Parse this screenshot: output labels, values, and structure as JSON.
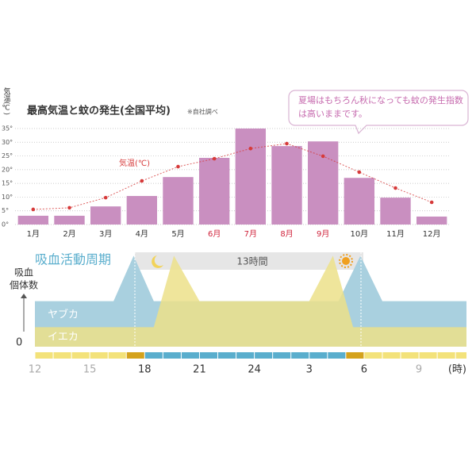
{
  "chart_data": [
    {
      "type": "bar-line",
      "title": "最高気温と蚊の発生(全国平均)",
      "note": "※自社調べ",
      "ylabel": "気温(℃)",
      "annotation": "夏場はもちろん秋になっても蚊の発生指数は高いままです。",
      "categories": [
        "1月",
        "2月",
        "3月",
        "4月",
        "5月",
        "6月",
        "7月",
        "8月",
        "9月",
        "10月",
        "11月",
        "12月"
      ],
      "category_colors": [
        "#333333",
        "#333333",
        "#333333",
        "#333333",
        "#333333",
        "#d0243c",
        "#d0243c",
        "#d0243c",
        "#d0243c",
        "#333333",
        "#333333",
        "#333333"
      ],
      "series": [
        {
          "type": "bar",
          "color": "#c98fc0",
          "values": [
            3.2,
            3.2,
            6.6,
            10.4,
            17.3,
            24.3,
            35,
            28.6,
            30.3,
            17,
            9.8,
            2.9
          ]
        },
        {
          "type": "line",
          "name": "気温(℃)",
          "color": "#d63a3a",
          "values": [
            5.5,
            6.1,
            9.8,
            15.9,
            21.1,
            24,
            27.7,
            29.5,
            24.9,
            19.1,
            13.3,
            8.1
          ]
        }
      ],
      "ylim": [
        0,
        35
      ],
      "yticks": [
        {
          "value": 0,
          "label": "0°"
        },
        {
          "value": 5,
          "label": "5°"
        },
        {
          "value": 10,
          "label": "10°"
        },
        {
          "value": 15,
          "label": "15°"
        },
        {
          "value": 20,
          "label": "20°"
        },
        {
          "value": 25,
          "label": "25°"
        },
        {
          "value": 30,
          "label": "30°"
        },
        {
          "value": 35,
          "label": "35°"
        }
      ],
      "grid": true
    },
    {
      "type": "area",
      "title": "吸血活動周期",
      "annotation": "13時間",
      "ylabel": [
        "吸血",
        "個体数"
      ],
      "x_unit": "(時)",
      "xlim": [
        12,
        35.6
      ],
      "xticks": [
        12,
        15,
        18,
        21,
        24,
        {
          "value": 27,
          "label": "3"
        },
        {
          "value": 30,
          "label": "6"
        },
        {
          "value": 33,
          "label": "9"
        }
      ],
      "ylim": [
        0,
        10
      ],
      "yticks": [
        0
      ],
      "series": [
        {
          "name": "ヤブカ",
          "color": "#a9d0df",
          "x": [
            12,
            16.3,
            17.4,
            18.5,
            28.6,
            29.8,
            31,
            35.6
          ],
          "values": [
            4.9,
            4.9,
            9.8,
            4.9,
            4.9,
            9.8,
            4.9,
            4.9
          ]
        },
        {
          "name": "イエカ",
          "color": "#ece08a",
          "x": [
            12,
            18.5,
            19.6,
            21,
            27,
            28.3,
            29.4,
            35.6
          ],
          "values": [
            2.1,
            2.1,
            9.8,
            4.9,
            4.9,
            9.8,
            2.1,
            2.1
          ]
        }
      ]
    }
  ]
}
